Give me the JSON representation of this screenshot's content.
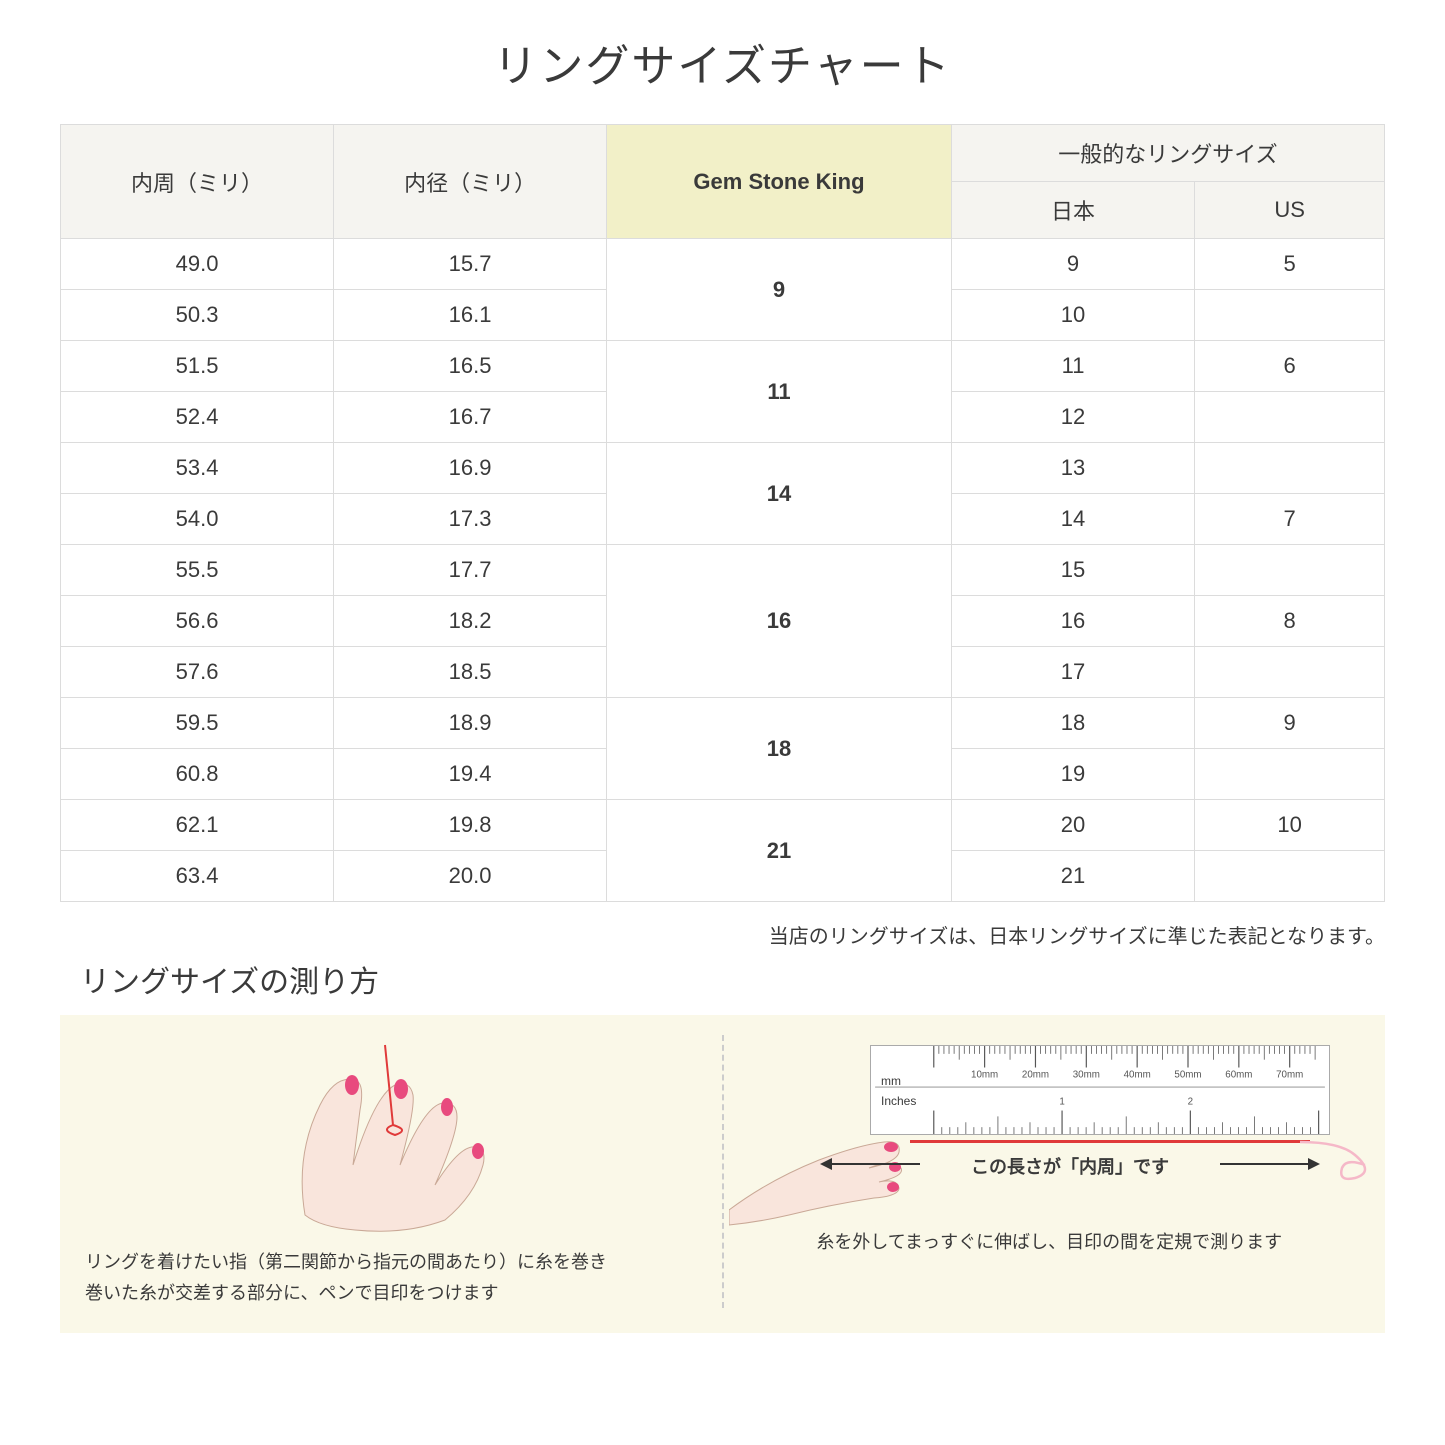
{
  "title": "リングサイズチャート",
  "table": {
    "headers": {
      "circumference": "内周（ミリ）",
      "diameter": "内径（ミリ）",
      "gsk": "Gem Stone King",
      "general_group": "一般的なリングサイズ",
      "jp": "日本",
      "us": "US"
    },
    "rows": [
      {
        "circ": "49.0",
        "dia": "15.7",
        "gsk": "9",
        "gsk_rowspan": 2,
        "jp": "9",
        "us": "5"
      },
      {
        "circ": "50.3",
        "dia": "16.1",
        "gsk": null,
        "jp": "10",
        "us": ""
      },
      {
        "circ": "51.5",
        "dia": "16.5",
        "gsk": "11",
        "gsk_rowspan": 2,
        "jp": "11",
        "us": "6"
      },
      {
        "circ": "52.4",
        "dia": "16.7",
        "gsk": null,
        "jp": "12",
        "us": ""
      },
      {
        "circ": "53.4",
        "dia": "16.9",
        "gsk": "14",
        "gsk_rowspan": 2,
        "jp": "13",
        "us": ""
      },
      {
        "circ": "54.0",
        "dia": "17.3",
        "gsk": null,
        "jp": "14",
        "us": "7"
      },
      {
        "circ": "55.5",
        "dia": "17.7",
        "gsk": "16",
        "gsk_rowspan": 3,
        "jp": "15",
        "us": ""
      },
      {
        "circ": "56.6",
        "dia": "18.2",
        "gsk": null,
        "jp": "16",
        "us": "8"
      },
      {
        "circ": "57.6",
        "dia": "18.5",
        "gsk": null,
        "jp": "17",
        "us": ""
      },
      {
        "circ": "59.5",
        "dia": "18.9",
        "gsk": "18",
        "gsk_rowspan": 2,
        "jp": "18",
        "us": "9"
      },
      {
        "circ": "60.8",
        "dia": "19.4",
        "gsk": null,
        "jp": "19",
        "us": ""
      },
      {
        "circ": "62.1",
        "dia": "19.8",
        "gsk": "21",
        "gsk_rowspan": 2,
        "jp": "20",
        "us": "10"
      },
      {
        "circ": "63.4",
        "dia": "20.0",
        "gsk": null,
        "jp": "21",
        "us": ""
      }
    ]
  },
  "note": "当店のリングサイズは、日本リングサイズに準じた表記となります。",
  "subtitle": "リングサイズの測り方",
  "instructions": {
    "left": "リングを着けたい指（第二関節から指元の間あたり）に糸を巻き\n巻いた糸が交差する部分に、ペンで目印をつけます",
    "right_dim": "この長さが「内周」です",
    "right_caption": "糸を外してまっすぐに伸ばし、目印の間を定規で測ります",
    "ruler_mm": "mm",
    "ruler_in": "Inches",
    "ruler_mm_labels": [
      "10mm",
      "20mm",
      "30mm",
      "40mm",
      "50mm",
      "60mm",
      "70mm"
    ],
    "ruler_in_labels": [
      "1",
      "2"
    ]
  },
  "colors": {
    "header_bg": "#f5f4f0",
    "highlight_bg": "#f2f0c8",
    "border": "#dcdcdc",
    "instruction_bg": "#faf8e8",
    "skin": "#f9e5dc",
    "nail": "#e84a7e",
    "thread": "#e03a3a"
  }
}
